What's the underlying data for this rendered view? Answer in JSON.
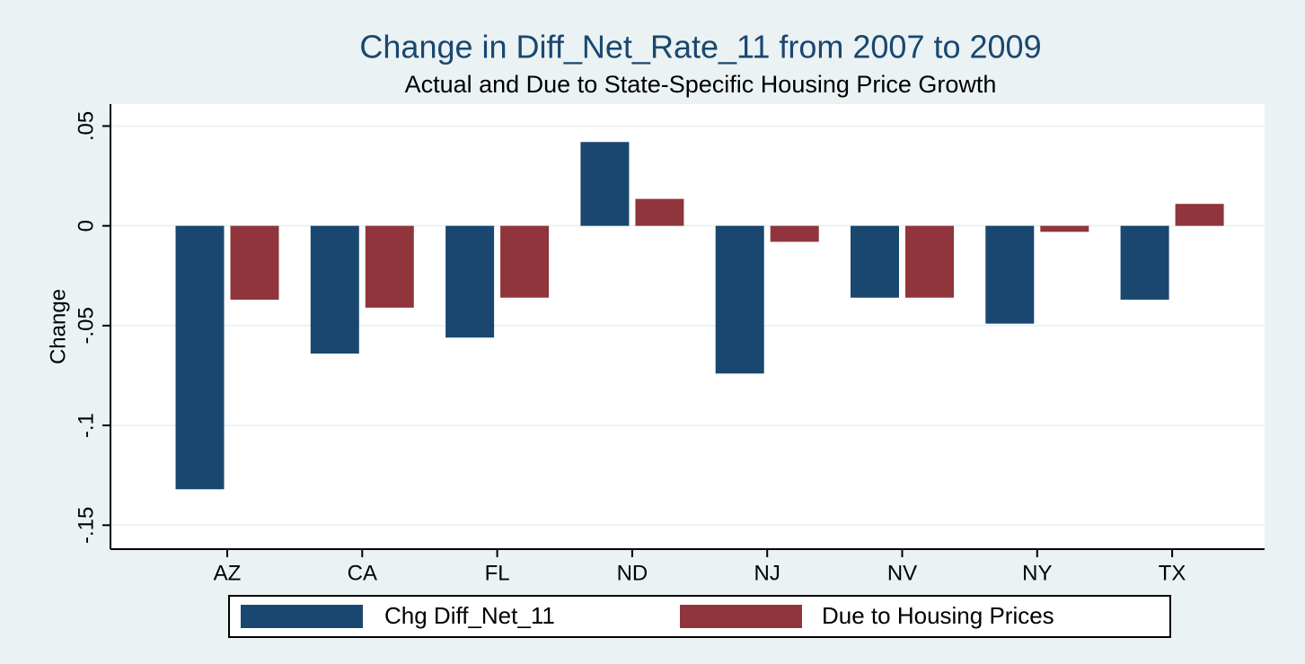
{
  "chart_data": {
    "type": "bar",
    "title": "Change in Diff_Net_Rate_11 from 2007 to 2009",
    "subtitle": "Actual and Due to State-Specific Housing Price Growth",
    "y_label": "Change",
    "categories": [
      "AZ",
      "CA",
      "FL",
      "ND",
      "NJ",
      "NV",
      "NY",
      "TX"
    ],
    "series": [
      {
        "name": "Chg Diff_Net_11",
        "color": "#1a476f",
        "values": [
          -0.132,
          -0.064,
          -0.056,
          0.042,
          -0.074,
          -0.036,
          -0.049,
          -0.037
        ]
      },
      {
        "name": "Due to Housing Prices",
        "color": "#90353b",
        "values": [
          -0.037,
          -0.041,
          -0.036,
          0.0135,
          -0.008,
          -0.036,
          -0.003,
          0.011
        ]
      }
    ],
    "ylim": [
      -0.162,
      0.061
    ],
    "yticks": [
      {
        "value": -0.15,
        "label": "-.15"
      },
      {
        "value": -0.1,
        "label": "-.1"
      },
      {
        "value": -0.05,
        "label": "-.05"
      },
      0,
      {
        "value": 0.05,
        "label": ".05"
      }
    ],
    "grid": true,
    "legend": "bottom"
  }
}
